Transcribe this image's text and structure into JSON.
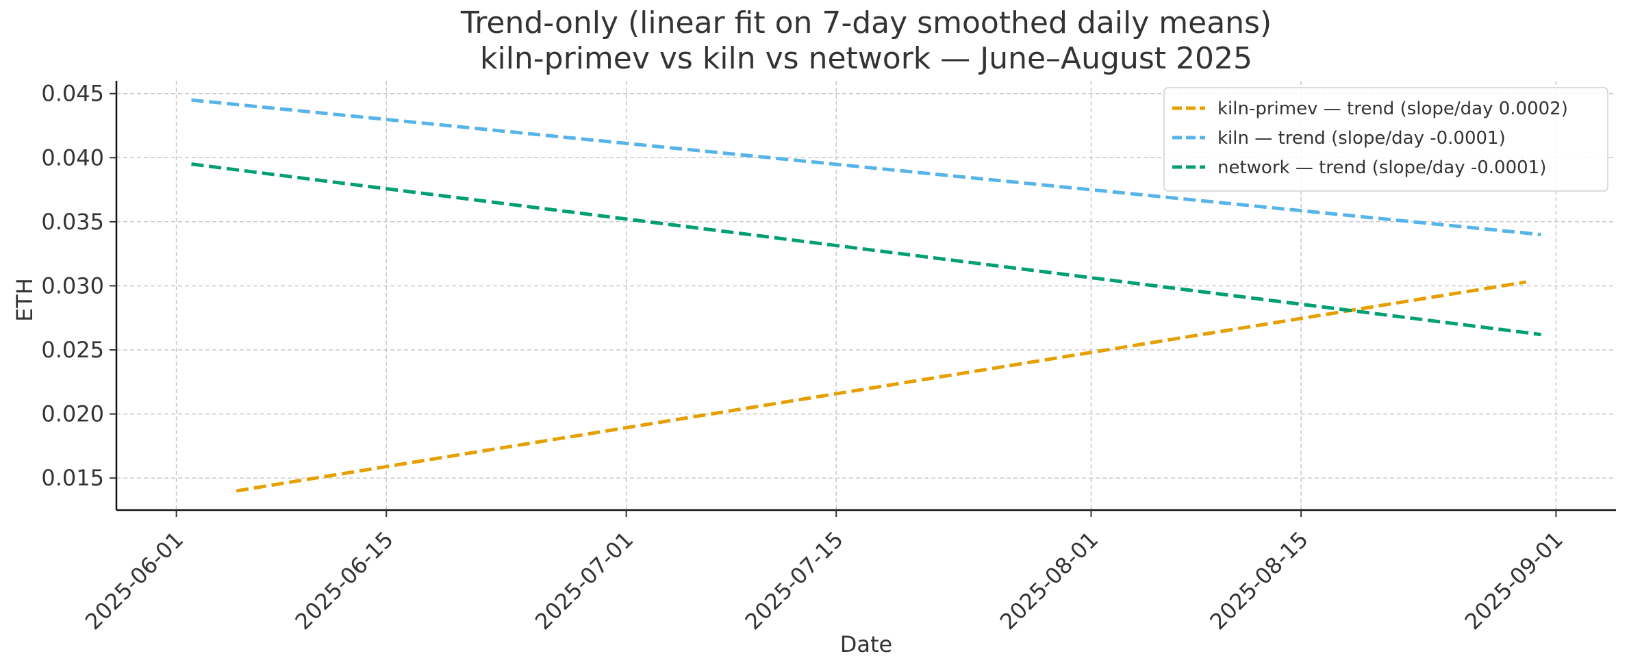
{
  "chart_data": {
    "type": "line",
    "title": "Trend-only (linear fit on 7-day smoothed daily means)",
    "subtitle": "kiln-primev vs kiln vs network — June–August 2025",
    "xlabel": "Date",
    "ylabel": "ETH",
    "x_ticks": [
      "2025-06-01",
      "2025-06-15",
      "2025-07-01",
      "2025-07-15",
      "2025-08-01",
      "2025-08-15",
      "2025-09-01"
    ],
    "y_ticks": [
      "0.015",
      "0.020",
      "0.025",
      "0.030",
      "0.035",
      "0.040",
      "0.045"
    ],
    "xlim": [
      "2025-05-28",
      "2025-09-05"
    ],
    "ylim": [
      0.0125,
      0.046
    ],
    "grid": true,
    "legend_position": "top-right",
    "series": [
      {
        "name": "kiln-primev — trend (slope/day 0.0002)",
        "color": "#E69F00",
        "style": "dashed",
        "points": [
          [
            "2025-06-05",
            0.014
          ],
          [
            "2025-08-30",
            0.0303
          ]
        ]
      },
      {
        "name": "kiln — trend (slope/day -0.0001)",
        "color": "#56B4E9",
        "style": "dashed",
        "points": [
          [
            "2025-06-02",
            0.0445
          ],
          [
            "2025-08-31",
            0.034
          ]
        ]
      },
      {
        "name": "network — trend (slope/day -0.0001)",
        "color": "#009E73",
        "style": "dashed",
        "points": [
          [
            "2025-06-02",
            0.0395
          ],
          [
            "2025-08-31",
            0.0262
          ]
        ]
      }
    ]
  }
}
